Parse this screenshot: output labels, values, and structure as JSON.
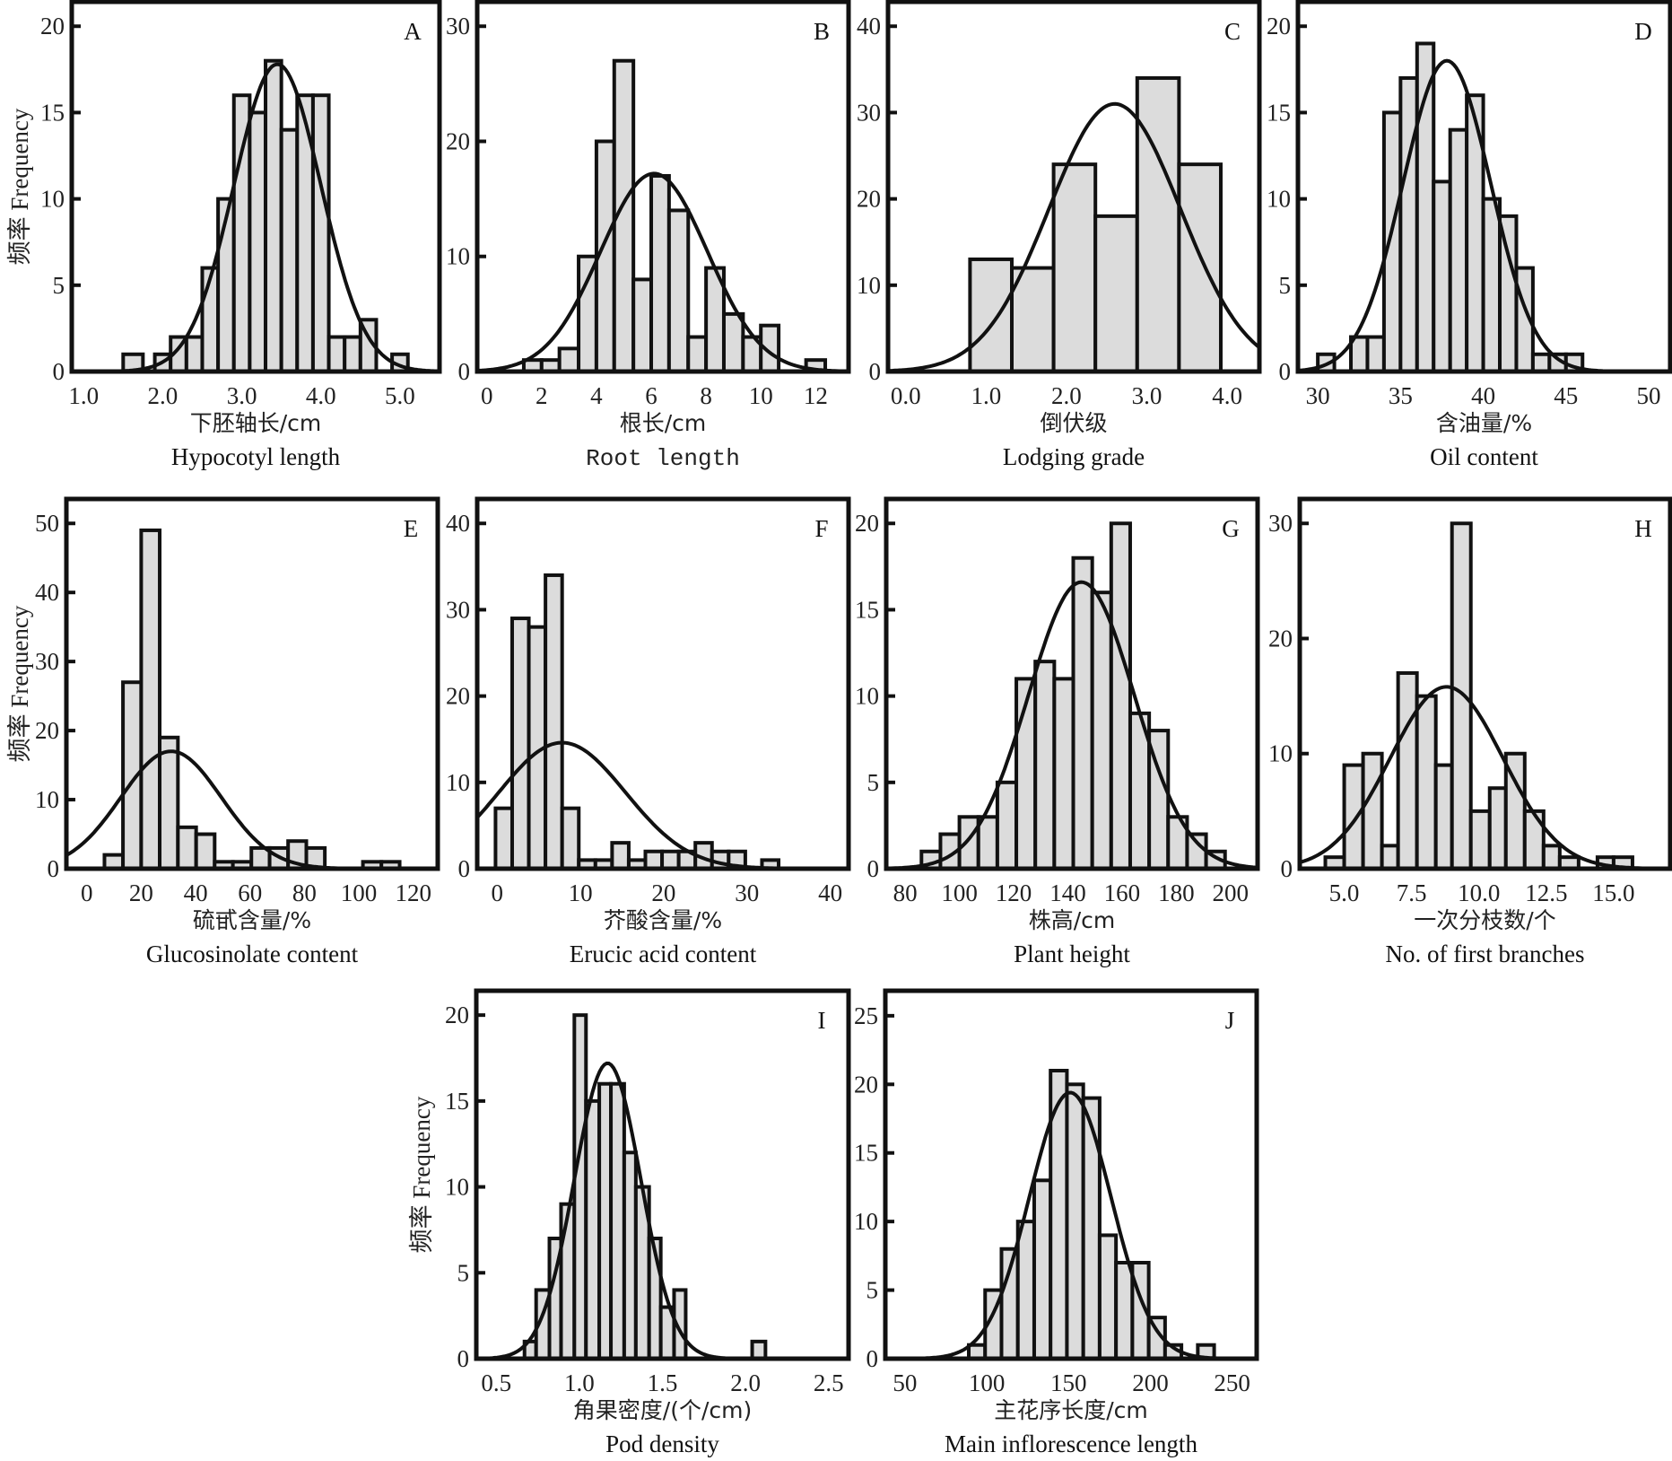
{
  "figure": {
    "y_axis_label": "频率 Frequency"
  },
  "chart_data": [
    {
      "id": "A",
      "type": "bar",
      "subtype": "histogram-with-normal-fit",
      "title": "A",
      "xlabel_cn": "下胚轴长/cm",
      "xlabel_en": "Hypocotyl length",
      "xticks": [
        1.0,
        2.0,
        3.0,
        4.0,
        5.0
      ],
      "xtick_labels": [
        "1.0",
        "2.0",
        "3.0",
        "4.0",
        "5.0"
      ],
      "xlim": [
        0.85,
        5.5
      ],
      "yticks": [
        0,
        5,
        10,
        15,
        20
      ],
      "ylim": [
        0,
        21
      ],
      "bin_width": 0.25,
      "bins": [
        [
          1.5,
          1
        ],
        [
          1.75,
          0
        ],
        [
          2.0,
          1
        ],
        [
          2.125,
          2
        ],
        [
          2.375,
          2
        ],
        [
          2.625,
          6
        ],
        [
          2.875,
          10
        ],
        [
          3.125,
          16
        ],
        [
          3.375,
          15
        ],
        [
          3.625,
          18
        ],
        [
          3.875,
          14
        ],
        [
          4.125,
          16
        ],
        [
          4.375,
          16
        ],
        [
          4.625,
          2
        ],
        [
          4.875,
          2
        ],
        [
          5.0,
          3
        ],
        [
          5.375,
          1
        ]
      ],
      "bars": [
        {
          "x0": 1.5,
          "x1": 1.75,
          "v": 1
        },
        {
          "x0": 1.9,
          "x1": 2.1,
          "v": 1
        },
        {
          "x0": 2.1,
          "x1": 2.3,
          "v": 2
        },
        {
          "x0": 2.3,
          "x1": 2.5,
          "v": 2
        },
        {
          "x0": 2.5,
          "x1": 2.7,
          "v": 6
        },
        {
          "x0": 2.7,
          "x1": 2.9,
          "v": 10
        },
        {
          "x0": 2.9,
          "x1": 3.1,
          "v": 16
        },
        {
          "x0": 3.1,
          "x1": 3.3,
          "v": 15
        },
        {
          "x0": 3.3,
          "x1": 3.5,
          "v": 18
        },
        {
          "x0": 3.5,
          "x1": 3.7,
          "v": 14
        },
        {
          "x0": 3.7,
          "x1": 3.9,
          "v": 16
        },
        {
          "x0": 3.9,
          "x1": 4.1,
          "v": 16
        },
        {
          "x0": 4.1,
          "x1": 4.3,
          "v": 2
        },
        {
          "x0": 4.3,
          "x1": 4.5,
          "v": 2
        },
        {
          "x0": 4.5,
          "x1": 4.7,
          "v": 3
        },
        {
          "x0": 4.9,
          "x1": 5.1,
          "v": 1
        }
      ],
      "normal_fit": {
        "mean": 3.45,
        "sd": 0.55,
        "peak": 17.8
      },
      "x_label_style": "serif"
    },
    {
      "id": "B",
      "type": "bar",
      "subtype": "histogram-with-normal-fit",
      "title": "B",
      "xlabel_cn": "根长/cm",
      "xlabel_en": "Root length",
      "xticks": [
        0,
        2,
        4,
        6,
        8,
        10,
        12
      ],
      "xtick_labels": [
        "0",
        "2",
        "4",
        "6",
        "8",
        "10",
        "12"
      ],
      "xlim": [
        -0.35,
        13.2
      ],
      "yticks": [
        0,
        10,
        20,
        30
      ],
      "ylim": [
        0,
        31.5
      ],
      "bars": [
        {
          "x0": 1.35,
          "x1": 2.0,
          "v": 1
        },
        {
          "x0": 2.0,
          "x1": 2.65,
          "v": 1
        },
        {
          "x0": 2.65,
          "x1": 3.35,
          "v": 2
        },
        {
          "x0": 3.35,
          "x1": 4.0,
          "v": 10
        },
        {
          "x0": 4.0,
          "x1": 4.65,
          "v": 20
        },
        {
          "x0": 4.65,
          "x1": 5.35,
          "v": 27
        },
        {
          "x0": 5.35,
          "x1": 6.0,
          "v": 8
        },
        {
          "x0": 6.0,
          "x1": 6.65,
          "v": 17
        },
        {
          "x0": 6.65,
          "x1": 7.35,
          "v": 14
        },
        {
          "x0": 7.35,
          "x1": 8.0,
          "v": 3
        },
        {
          "x0": 8.0,
          "x1": 8.65,
          "v": 9
        },
        {
          "x0": 8.65,
          "x1": 9.35,
          "v": 5
        },
        {
          "x0": 9.35,
          "x1": 10.0,
          "v": 3
        },
        {
          "x0": 10.0,
          "x1": 10.65,
          "v": 4
        },
        {
          "x0": 11.65,
          "x1": 12.35,
          "v": 1
        }
      ],
      "normal_fit": {
        "mean": 6.1,
        "sd": 1.95,
        "peak": 17.2
      },
      "x_label_style": "mono"
    },
    {
      "id": "C",
      "type": "bar",
      "subtype": "histogram-with-normal-fit",
      "title": "C",
      "xlabel_cn": "倒伏级",
      "xlabel_en": "Lodging  grade",
      "xticks": [
        0.0,
        1.0,
        2.0,
        3.0,
        4.0
      ],
      "xtick_labels": [
        "0.0",
        "1.0",
        "2.0",
        "3.0",
        "4.0"
      ],
      "xlim": [
        -0.22,
        4.4
      ],
      "yticks": [
        0,
        10,
        20,
        30,
        40
      ],
      "ylim": [
        0,
        42
      ],
      "bars": [
        {
          "x0": 0.8,
          "x1": 1.32,
          "v": 13
        },
        {
          "x0": 1.32,
          "x1": 1.84,
          "v": 12
        },
        {
          "x0": 1.84,
          "x1": 2.36,
          "v": 24
        },
        {
          "x0": 2.36,
          "x1": 2.88,
          "v": 18
        },
        {
          "x0": 2.88,
          "x1": 3.4,
          "v": 34
        },
        {
          "x0": 3.4,
          "x1": 3.92,
          "v": 24
        }
      ],
      "normal_fit": {
        "mean": 2.6,
        "sd": 0.82,
        "peak": 31
      },
      "x_label_style": "mixed"
    },
    {
      "id": "D",
      "type": "bar",
      "subtype": "histogram-with-normal-fit",
      "title": "D",
      "xlabel_cn": "含油量/%",
      "xlabel_en": "Oil content",
      "xticks": [
        30,
        35,
        40,
        45,
        50
      ],
      "xtick_labels": [
        "30",
        "35",
        "40",
        "45",
        "50"
      ],
      "xlim": [
        28.8,
        51.3
      ],
      "yticks": [
        0,
        5,
        10,
        15,
        20
      ],
      "ylim": [
        0,
        21
      ],
      "bars": [
        {
          "x0": 30.0,
          "x1": 31.0,
          "v": 1
        },
        {
          "x0": 32.0,
          "x1": 33.0,
          "v": 2
        },
        {
          "x0": 33.0,
          "x1": 34.0,
          "v": 2
        },
        {
          "x0": 34.0,
          "x1": 35.0,
          "v": 15
        },
        {
          "x0": 35.0,
          "x1": 36.0,
          "v": 17
        },
        {
          "x0": 36.0,
          "x1": 37.0,
          "v": 19
        },
        {
          "x0": 37.0,
          "x1": 38.0,
          "v": 11
        },
        {
          "x0": 38.0,
          "x1": 39.0,
          "v": 14
        },
        {
          "x0": 39.0,
          "x1": 40.0,
          "v": 16
        },
        {
          "x0": 40.0,
          "x1": 41.0,
          "v": 10
        },
        {
          "x0": 41.0,
          "x1": 42.0,
          "v": 9
        },
        {
          "x0": 42.0,
          "x1": 43.0,
          "v": 6
        },
        {
          "x0": 43.0,
          "x1": 44.0,
          "v": 1
        },
        {
          "x0": 44.0,
          "x1": 45.0,
          "v": 1
        },
        {
          "x0": 45.0,
          "x1": 46.0,
          "v": 1
        }
      ],
      "normal_fit": {
        "mean": 37.8,
        "sd": 2.65,
        "peak": 18
      },
      "x_label_style": "serif"
    },
    {
      "id": "E",
      "type": "bar",
      "subtype": "histogram-with-normal-fit",
      "title": "E",
      "xlabel_cn": "硫甙含量/%",
      "xlabel_en": "Glucosinolate content",
      "xticks": [
        0,
        20,
        40,
        60,
        80,
        100,
        120
      ],
      "xtick_labels": [
        "0",
        "20",
        "40",
        "60",
        "80",
        "100",
        "120"
      ],
      "xlim": [
        -7.5,
        129
      ],
      "yticks": [
        0,
        10,
        20,
        30,
        40,
        50
      ],
      "ylim": [
        0,
        52.5
      ],
      "bars": [
        {
          "x0": 6.5,
          "x1": 13.3,
          "v": 2
        },
        {
          "x0": 13.3,
          "x1": 20.0,
          "v": 27
        },
        {
          "x0": 20.0,
          "x1": 26.8,
          "v": 49
        },
        {
          "x0": 26.8,
          "x1": 33.5,
          "v": 19
        },
        {
          "x0": 33.5,
          "x1": 40.2,
          "v": 6
        },
        {
          "x0": 40.2,
          "x1": 47.0,
          "v": 5
        },
        {
          "x0": 47.0,
          "x1": 53.7,
          "v": 1
        },
        {
          "x0": 53.7,
          "x1": 60.5,
          "v": 1
        },
        {
          "x0": 60.5,
          "x1": 67.2,
          "v": 3
        },
        {
          "x0": 67.2,
          "x1": 74.0,
          "v": 3
        },
        {
          "x0": 74.0,
          "x1": 80.7,
          "v": 4
        },
        {
          "x0": 80.7,
          "x1": 87.5,
          "v": 3
        },
        {
          "x0": 101.5,
          "x1": 108.3,
          "v": 1
        },
        {
          "x0": 108.3,
          "x1": 115.0,
          "v": 1
        }
      ],
      "normal_fit": {
        "mean": 31,
        "sd": 18.5,
        "peak": 17
      },
      "x_label_style": "serif"
    },
    {
      "id": "F",
      "type": "bar",
      "subtype": "histogram-with-normal-fit",
      "title": "F",
      "xlabel_cn": "芥酸含量/%",
      "xlabel_en": "Erucic acid content",
      "xticks": [
        0,
        10,
        20,
        30,
        40
      ],
      "xtick_labels": [
        "0",
        "10",
        "20",
        "30",
        "40"
      ],
      "xlim": [
        -2.4,
        42.2
      ],
      "yticks": [
        0,
        10,
        20,
        30,
        40
      ],
      "ylim": [
        0,
        42
      ],
      "bars": [
        {
          "x0": -0.2,
          "x1": 1.8,
          "v": 7
        },
        {
          "x0": 1.8,
          "x1": 3.8,
          "v": 29
        },
        {
          "x0": 3.8,
          "x1": 5.8,
          "v": 28
        },
        {
          "x0": 5.8,
          "x1": 7.8,
          "v": 34
        },
        {
          "x0": 7.8,
          "x1": 9.8,
          "v": 7
        },
        {
          "x0": 9.8,
          "x1": 11.8,
          "v": 1
        },
        {
          "x0": 11.8,
          "x1": 13.8,
          "v": 1
        },
        {
          "x0": 13.8,
          "x1": 15.8,
          "v": 3
        },
        {
          "x0": 15.8,
          "x1": 17.8,
          "v": 1
        },
        {
          "x0": 17.8,
          "x1": 19.8,
          "v": 2
        },
        {
          "x0": 19.8,
          "x1": 21.8,
          "v": 2
        },
        {
          "x0": 21.8,
          "x1": 23.8,
          "v": 2
        },
        {
          "x0": 23.8,
          "x1": 25.8,
          "v": 3
        },
        {
          "x0": 25.8,
          "x1": 27.8,
          "v": 2
        },
        {
          "x0": 27.8,
          "x1": 29.8,
          "v": 2
        },
        {
          "x0": 31.8,
          "x1": 33.8,
          "v": 1
        }
      ],
      "normal_fit": {
        "mean": 7.8,
        "sd": 7.6,
        "peak": 14.6
      },
      "x_label_style": "serif"
    },
    {
      "id": "G",
      "type": "bar",
      "subtype": "histogram-with-normal-fit",
      "title": "G",
      "xlabel_cn": "株高/cm",
      "xlabel_en": "Plant height",
      "xticks": [
        80,
        100,
        120,
        140,
        160,
        180,
        200
      ],
      "xtick_labels": [
        "80",
        "100",
        "120",
        "140",
        "160",
        "180",
        "200"
      ],
      "xlim": [
        73,
        210
      ],
      "yticks": [
        0,
        5,
        10,
        15,
        20
      ],
      "ylim": [
        0,
        21
      ],
      "bars": [
        {
          "x0": 86,
          "x1": 93,
          "v": 1
        },
        {
          "x0": 93,
          "x1": 100,
          "v": 2
        },
        {
          "x0": 100,
          "x1": 107,
          "v": 3
        },
        {
          "x0": 107,
          "x1": 114,
          "v": 3
        },
        {
          "x0": 114,
          "x1": 121,
          "v": 5
        },
        {
          "x0": 121,
          "x1": 128,
          "v": 11
        },
        {
          "x0": 128,
          "x1": 135,
          "v": 12
        },
        {
          "x0": 135,
          "x1": 142,
          "v": 11
        },
        {
          "x0": 142,
          "x1": 149,
          "v": 18
        },
        {
          "x0": 149,
          "x1": 156,
          "v": 16
        },
        {
          "x0": 156,
          "x1": 163,
          "v": 20
        },
        {
          "x0": 163,
          "x1": 170,
          "v": 9
        },
        {
          "x0": 170,
          "x1": 177,
          "v": 8
        },
        {
          "x0": 177,
          "x1": 184,
          "v": 3
        },
        {
          "x0": 184,
          "x1": 191,
          "v": 2
        },
        {
          "x0": 191,
          "x1": 198,
          "v": 1
        }
      ],
      "normal_fit": {
        "mean": 145,
        "sd": 19.5,
        "peak": 16.6
      },
      "x_label_style": "serif"
    },
    {
      "id": "H",
      "type": "bar",
      "subtype": "histogram-with-normal-fit",
      "title": "H",
      "xlabel_cn": "一次分枝数/个",
      "xlabel_en": "No. of first branches",
      "xticks": [
        5.0,
        7.5,
        10.0,
        12.5,
        15.0
      ],
      "xtick_labels": [
        "5.0",
        "7.5",
        "10.0",
        "12.5",
        "15.0"
      ],
      "xlim": [
        3.35,
        17.1
      ],
      "yticks": [
        0,
        10,
        20,
        30
      ],
      "ylim": [
        0,
        31.5
      ],
      "bars": [
        {
          "x0": 4.3,
          "x1": 5.0,
          "v": 1
        },
        {
          "x0": 5.0,
          "x1": 5.7,
          "v": 9
        },
        {
          "x0": 5.7,
          "x1": 6.4,
          "v": 10
        },
        {
          "x0": 6.4,
          "x1": 7.0,
          "v": 2
        },
        {
          "x0": 7.0,
          "x1": 7.7,
          "v": 17
        },
        {
          "x0": 7.7,
          "x1": 8.4,
          "v": 15
        },
        {
          "x0": 8.4,
          "x1": 9.0,
          "v": 9
        },
        {
          "x0": 9.0,
          "x1": 9.7,
          "v": 30
        },
        {
          "x0": 9.7,
          "x1": 10.4,
          "v": 5
        },
        {
          "x0": 10.4,
          "x1": 11.0,
          "v": 7
        },
        {
          "x0": 11.0,
          "x1": 11.7,
          "v": 10
        },
        {
          "x0": 11.7,
          "x1": 12.4,
          "v": 5
        },
        {
          "x0": 12.4,
          "x1": 13.0,
          "v": 2
        },
        {
          "x0": 13.0,
          "x1": 13.7,
          "v": 1
        },
        {
          "x0": 14.4,
          "x1": 15.0,
          "v": 1
        },
        {
          "x0": 15.0,
          "x1": 15.7,
          "v": 1
        }
      ],
      "normal_fit": {
        "mean": 8.8,
        "sd": 2.1,
        "peak": 15.8
      },
      "x_label_style": "serif"
    },
    {
      "id": "I",
      "type": "bar",
      "subtype": "histogram-with-normal-fit",
      "title": "I",
      "xlabel_cn": "角果密度/(个/cm)",
      "xlabel_en": "Pod density",
      "xticks": [
        0.5,
        1.0,
        1.5,
        2.0,
        2.5
      ],
      "xtick_labels": [
        "0.5",
        "1.0",
        "1.5",
        "2.0",
        "2.5"
      ],
      "xlim": [
        0.38,
        2.62
      ],
      "yticks": [
        0,
        5,
        10,
        15,
        20
      ],
      "ylim": [
        0,
        21
      ],
      "bars": [
        {
          "x0": 0.67,
          "x1": 0.74,
          "v": 1
        },
        {
          "x0": 0.74,
          "x1": 0.82,
          "v": 4
        },
        {
          "x0": 0.82,
          "x1": 0.89,
          "v": 7
        },
        {
          "x0": 0.89,
          "x1": 0.97,
          "v": 9
        },
        {
          "x0": 0.97,
          "x1": 1.04,
          "v": 20
        },
        {
          "x0": 1.04,
          "x1": 1.12,
          "v": 15
        },
        {
          "x0": 1.12,
          "x1": 1.19,
          "v": 16
        },
        {
          "x0": 1.19,
          "x1": 1.27,
          "v": 16
        },
        {
          "x0": 1.27,
          "x1": 1.34,
          "v": 12
        },
        {
          "x0": 1.34,
          "x1": 1.42,
          "v": 10
        },
        {
          "x0": 1.42,
          "x1": 1.49,
          "v": 7
        },
        {
          "x0": 1.49,
          "x1": 1.57,
          "v": 3
        },
        {
          "x0": 1.57,
          "x1": 1.64,
          "v": 4
        },
        {
          "x0": 2.04,
          "x1": 2.12,
          "v": 1
        }
      ],
      "normal_fit": {
        "mean": 1.17,
        "sd": 0.2,
        "peak": 17.2
      },
      "x_label_style": "serif"
    },
    {
      "id": "J",
      "type": "bar",
      "subtype": "histogram-with-normal-fit",
      "title": "J",
      "xlabel_cn": "主花序长度/cm",
      "xlabel_en": "Main inflorescence length",
      "xticks": [
        50,
        100,
        150,
        200,
        250
      ],
      "xtick_labels": [
        "50",
        "100",
        "150",
        "200",
        "250"
      ],
      "xlim": [
        38,
        265
      ],
      "yticks": [
        0,
        5,
        10,
        15,
        20,
        25
      ],
      "ylim": [
        0,
        26.3
      ],
      "bars": [
        {
          "x0": 89,
          "x1": 99,
          "v": 1
        },
        {
          "x0": 99,
          "x1": 109,
          "v": 5
        },
        {
          "x0": 109,
          "x1": 119,
          "v": 8
        },
        {
          "x0": 119,
          "x1": 129,
          "v": 10
        },
        {
          "x0": 129,
          "x1": 139,
          "v": 13
        },
        {
          "x0": 139,
          "x1": 149,
          "v": 21
        },
        {
          "x0": 149,
          "x1": 159,
          "v": 20
        },
        {
          "x0": 159,
          "x1": 169,
          "v": 19
        },
        {
          "x0": 169,
          "x1": 179,
          "v": 9
        },
        {
          "x0": 179,
          "x1": 189,
          "v": 7
        },
        {
          "x0": 189,
          "x1": 199,
          "v": 7
        },
        {
          "x0": 199,
          "x1": 209,
          "v": 3
        },
        {
          "x0": 209,
          "x1": 219,
          "v": 1
        },
        {
          "x0": 229,
          "x1": 239,
          "v": 1
        }
      ],
      "normal_fit": {
        "mean": 151,
        "sd": 25,
        "peak": 19.4
      },
      "x_label_style": "serif"
    }
  ]
}
